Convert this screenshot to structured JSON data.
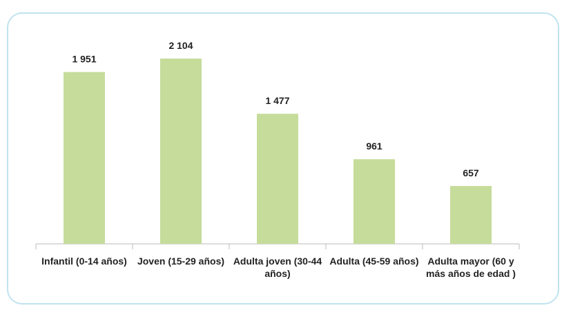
{
  "chart_data": {
    "type": "bar",
    "categories": [
      "Infantil (0-14 años)",
      "Joven (15-29 años)",
      "Adulta joven (30-44 años)",
      "Adulta (45-59 años)",
      "Adulta mayor (60 y más años de edad )"
    ],
    "values": [
      1951,
      2104,
      1477,
      961,
      657
    ],
    "value_labels": [
      "1 951",
      "2 104",
      "1 477",
      "961",
      "657"
    ],
    "color": "#c5dc9b"
  }
}
